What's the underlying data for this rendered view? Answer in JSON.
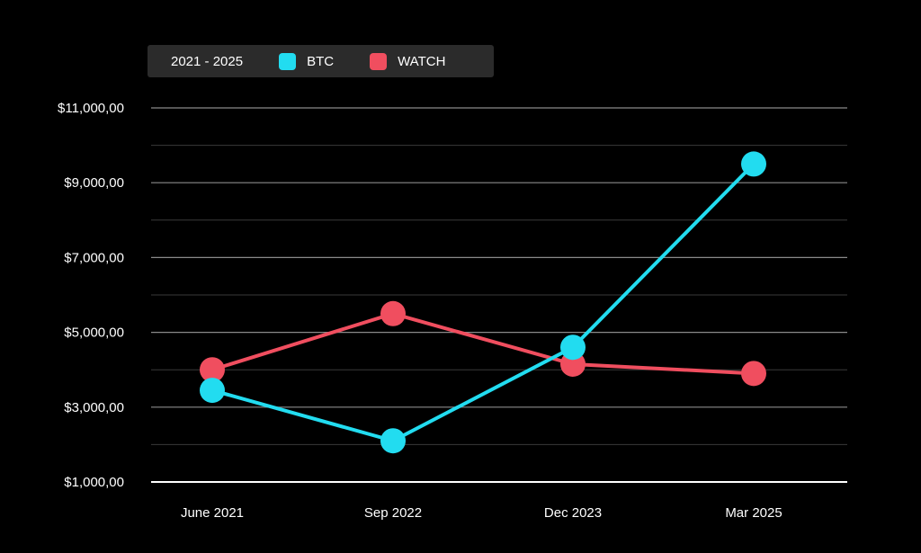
{
  "legend": {
    "range_label": "2021 - 2025"
  },
  "colors": {
    "background": "#000000",
    "grid": "#3a3a3a",
    "grid_major": "#8a8a8a",
    "axis": "#ffffff",
    "btc": "#22dcf0",
    "watch": "#f04e5f"
  },
  "chart_data": {
    "type": "line",
    "categories": [
      "June 2021",
      "Sep 2022",
      "Dec 2023",
      "Mar 2025"
    ],
    "series": [
      {
        "name": "BTC",
        "color": "#22dcf0",
        "values": [
          3450,
          2100,
          4600,
          9500
        ]
      },
      {
        "name": "WATCH",
        "color": "#f04e5f",
        "values": [
          4000,
          5500,
          4150,
          3900
        ]
      }
    ],
    "ylim": [
      1000,
      11000
    ],
    "yticks": [
      1000,
      3000,
      5000,
      7000,
      9000,
      11000
    ],
    "ytick_labels": [
      "$1,000,00",
      "$3,000,00",
      "$5,000,00",
      "$7,000,00",
      "$9,000,00",
      "$11,000,00"
    ],
    "minor_gridlines": [
      2000,
      4000,
      6000,
      8000,
      10000
    ],
    "title": "",
    "xlabel": "",
    "ylabel": "",
    "grid": true,
    "legend_position": "top-left"
  }
}
